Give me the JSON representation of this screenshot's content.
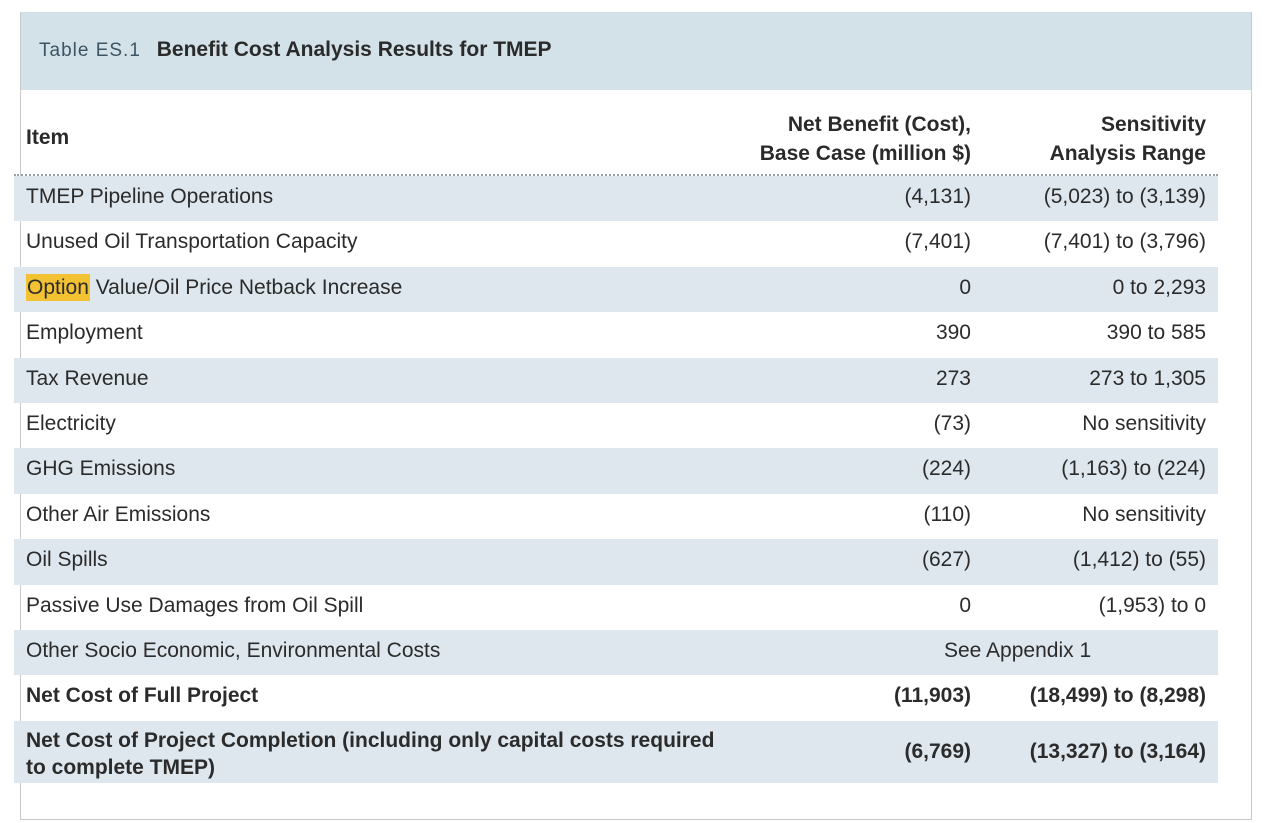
{
  "table": {
    "label": "Table ES.1",
    "title": "Benefit Cost Analysis Results for TMEP",
    "columns": {
      "item": "Item",
      "net_line1": "Net Benefit (Cost),",
      "net_line2": "Base Case (million $)",
      "sens_line1": "Sensitivity",
      "sens_line2": "Analysis Range"
    },
    "rows": [
      {
        "item": "TMEP Pipeline Operations",
        "net": "(4,131)",
        "range": "(5,023) to (3,139)"
      },
      {
        "item": "Unused Oil Transportation Capacity",
        "net": "(7,401)",
        "range": "(7,401) to (3,796)"
      },
      {
        "item_highlight": "Option",
        "item_rest": " Value/Oil Price Netback Increase",
        "net": "0",
        "range": "0 to 2,293"
      },
      {
        "item": "Employment",
        "net": "390",
        "range": "390 to 585"
      },
      {
        "item": "Tax Revenue",
        "net": "273",
        "range": "273 to 1,305"
      },
      {
        "item": "Electricity",
        "net": "(73)",
        "range": "No sensitivity"
      },
      {
        "item": "GHG Emissions",
        "net": "(224)",
        "range": "(1,163) to (224)"
      },
      {
        "item": "Other Air Emissions",
        "net": "(110)",
        "range": "No sensitivity"
      },
      {
        "item": "Oil Spills",
        "net": "(627)",
        "range": "(1,412) to (55)"
      },
      {
        "item": "Passive Use Damages from Oil Spill",
        "net": "0",
        "range": "(1,953) to 0"
      },
      {
        "item": "Other Socio Economic, Environmental Costs",
        "span": "See Appendix 1"
      },
      {
        "item": "Net Cost of Full Project",
        "net": "(11,903)",
        "range": "(18,499) to (8,298)"
      },
      {
        "item": "Net Cost of Project Completion (including only capital costs required to complete TMEP)",
        "net": "(6,769)",
        "range": "(13,327) to (3,164)"
      }
    ]
  },
  "colors": {
    "title_bar": "#d3e1e8",
    "row_shade": "#dde7ed",
    "highlight": "#f2c232"
  }
}
